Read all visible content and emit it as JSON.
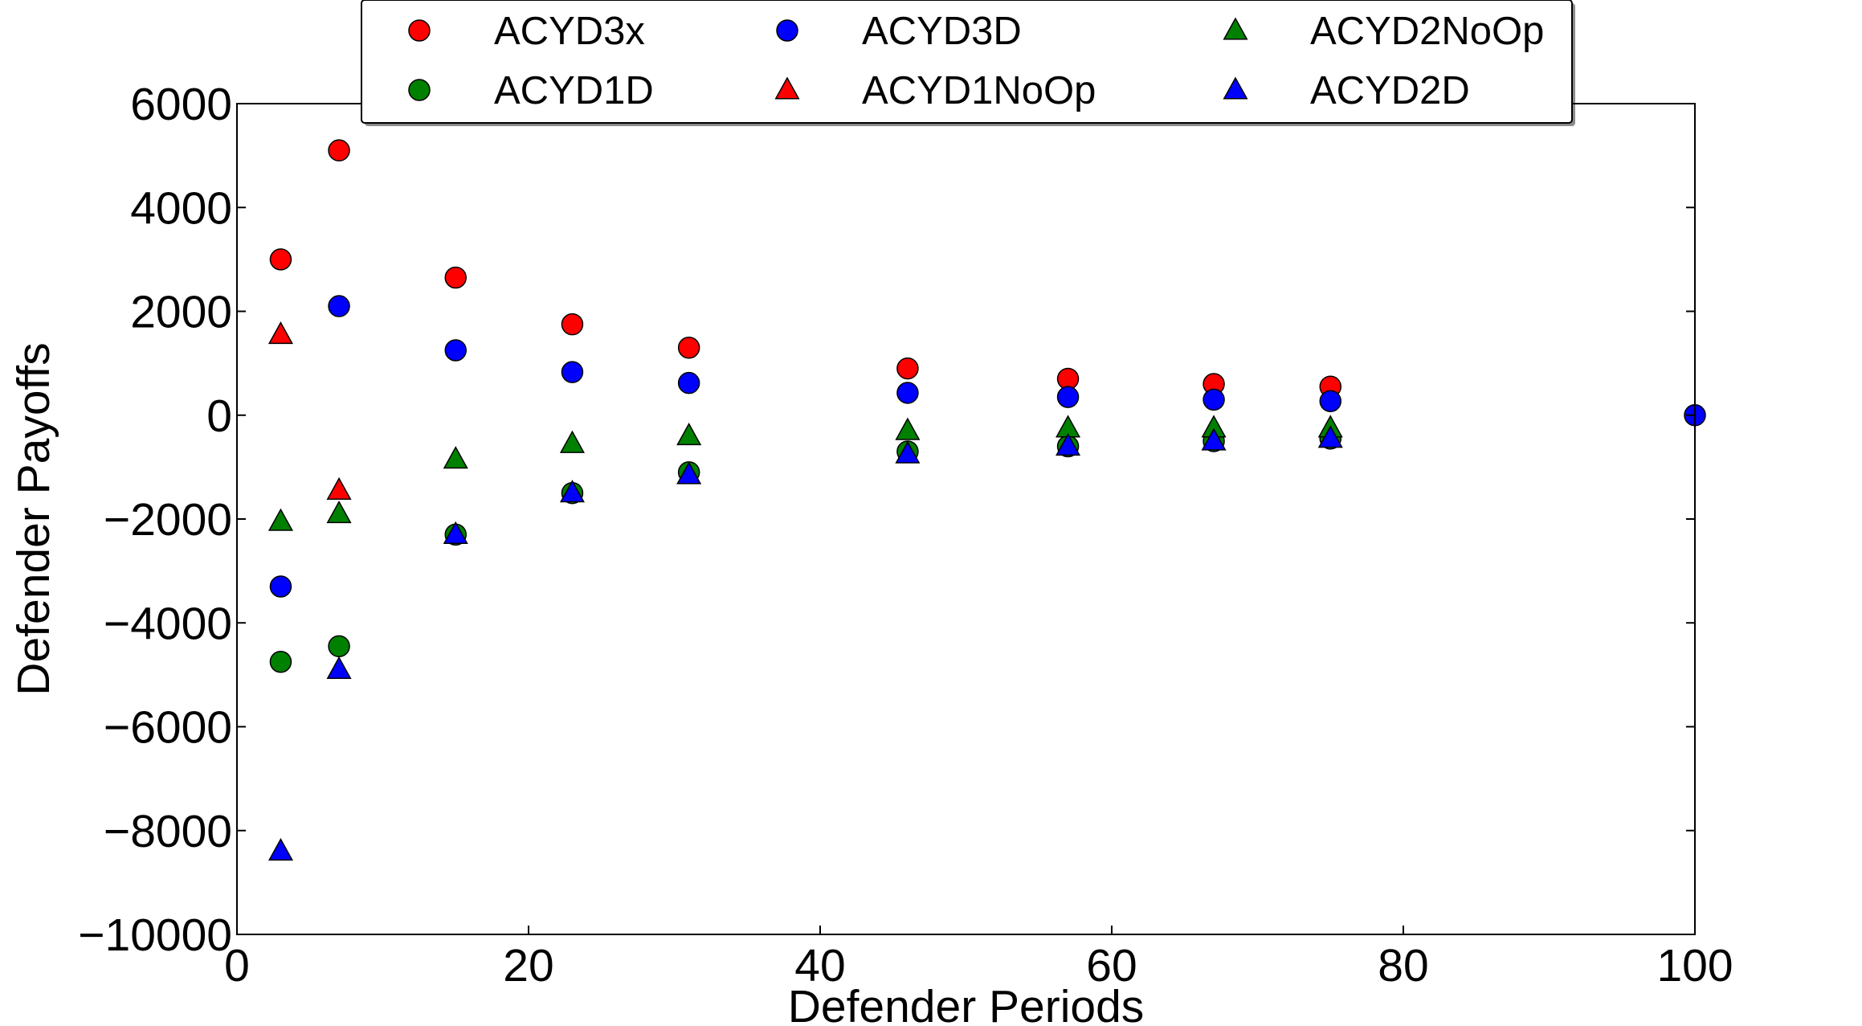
{
  "chart_data": {
    "type": "scatter",
    "xlabel": "Defender Periods",
    "ylabel": "Defender Payoffs",
    "xlim": [
      0,
      100
    ],
    "ylim": [
      -10000,
      6000
    ],
    "xticks": [
      0,
      20,
      40,
      60,
      80,
      100
    ],
    "xtick_labels": [
      "0",
      "20",
      "40",
      "60",
      "80",
      "100"
    ],
    "yticks": [
      6000,
      4000,
      2000,
      0,
      -2000,
      -4000,
      -6000,
      -8000,
      -10000
    ],
    "ytick_labels": [
      "6000",
      "4000",
      "2000",
      "0",
      "−2000",
      "−4000",
      "−6000",
      "−8000",
      "−10000"
    ],
    "grid": false,
    "legend_position": "top",
    "series": [
      {
        "name": "ACYD3x",
        "marker": "circle",
        "color": "#ff0000",
        "x": [
          3,
          7,
          15,
          23,
          31,
          46,
          57,
          67,
          75
        ],
        "y": [
          3000,
          5100,
          2650,
          1750,
          1300,
          900,
          700,
          600,
          550
        ]
      },
      {
        "name": "ACYD1D",
        "marker": "circle",
        "color": "#008000",
        "x": [
          3,
          7,
          15,
          23,
          31,
          46,
          57,
          67,
          75
        ],
        "y": [
          -4750,
          -4450,
          -2300,
          -1500,
          -1100,
          -700,
          -600,
          -500,
          -450
        ]
      },
      {
        "name": "ACYD3D",
        "marker": "circle",
        "color": "#0000ff",
        "x": [
          3,
          7,
          15,
          23,
          31,
          46,
          57,
          67,
          75,
          100
        ],
        "y": [
          -3300,
          2100,
          1250,
          830,
          620,
          430,
          350,
          300,
          270,
          0
        ]
      },
      {
        "name": "ACYD1NoOp",
        "marker": "triangle",
        "color": "#ff0000",
        "x": [
          3,
          7
        ],
        "y": [
          1550,
          -1450
        ]
      },
      {
        "name": "ACYD2NoOp",
        "marker": "triangle",
        "color": "#008000",
        "x": [
          3,
          7,
          15,
          23,
          31,
          46,
          57,
          67,
          75
        ],
        "y": [
          -2050,
          -1900,
          -850,
          -550,
          -400,
          -300,
          -250,
          -250,
          -250
        ]
      },
      {
        "name": "ACYD2D",
        "marker": "triangle",
        "color": "#0000ff",
        "x": [
          3,
          7,
          15,
          23,
          31,
          46,
          57,
          67,
          75
        ],
        "y": [
          -8400,
          -4900,
          -2300,
          -1500,
          -1150,
          -750,
          -600,
          -500,
          -450
        ]
      }
    ]
  }
}
